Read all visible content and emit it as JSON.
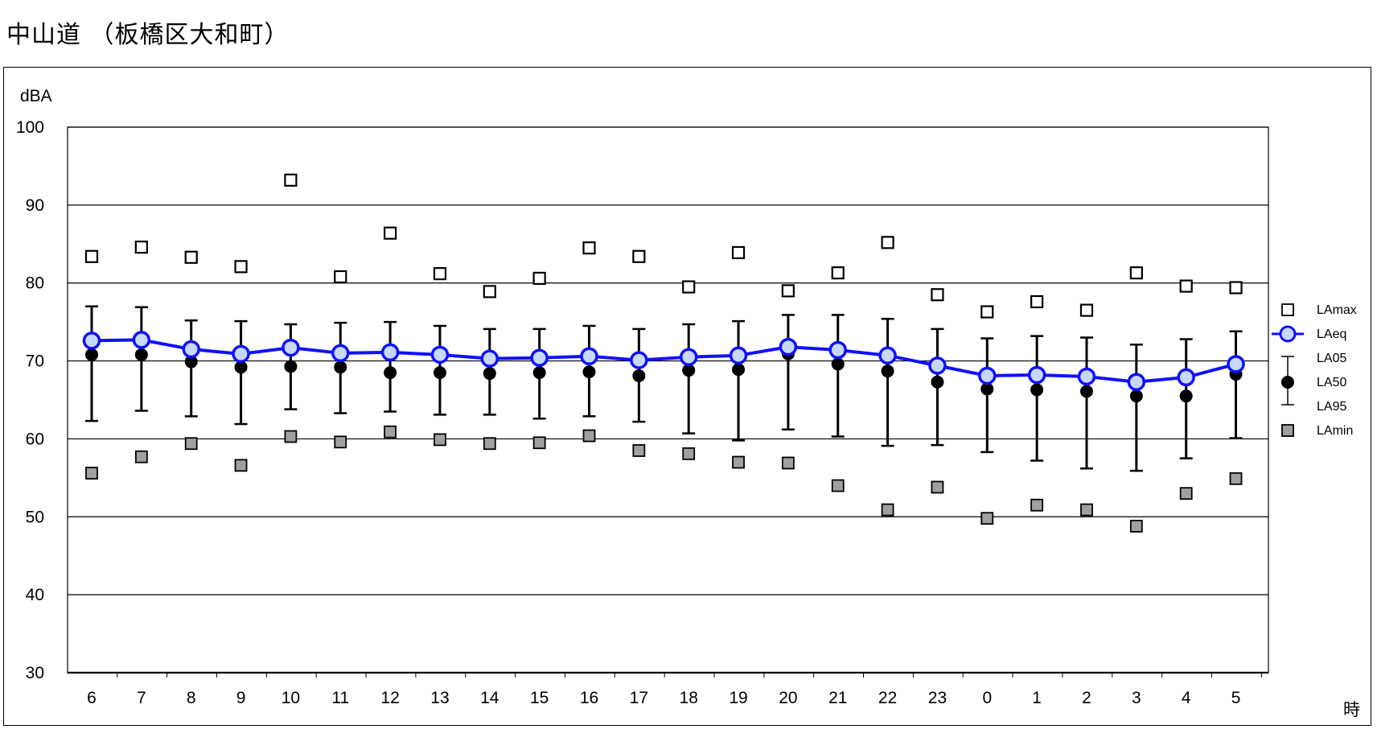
{
  "page": {
    "title": "中山道 （板橋区大和町）"
  },
  "chart_data": {
    "type": "scatter",
    "title": "中山道 （板橋区大和町）",
    "ylabel": "dBA",
    "xlabel": "時",
    "ylim": [
      30,
      100
    ],
    "yticks": [
      "30",
      "40",
      "50",
      "60",
      "70",
      "80",
      "90",
      "100"
    ],
    "grid": true,
    "legend_position": "right",
    "categories": [
      "6",
      "7",
      "8",
      "9",
      "10",
      "11",
      "12",
      "13",
      "14",
      "15",
      "16",
      "17",
      "18",
      "19",
      "20",
      "21",
      "22",
      "23",
      "0",
      "1",
      "2",
      "3",
      "4",
      "5"
    ],
    "series": [
      {
        "name": "LAmax",
        "marker": "hollow-square",
        "values": [
          83.4,
          84.6,
          83.3,
          82.1,
          93.2,
          80.8,
          86.4,
          81.2,
          78.9,
          80.6,
          84.5,
          83.4,
          79.5,
          83.9,
          79.0,
          81.3,
          85.2,
          78.5,
          76.3,
          77.6,
          76.5,
          81.3,
          79.6,
          79.4
        ]
      },
      {
        "name": "LAeq",
        "marker": "hollow-circle-line",
        "values": [
          72.6,
          72.7,
          71.5,
          70.9,
          71.7,
          71.0,
          71.1,
          70.8,
          70.3,
          70.4,
          70.6,
          70.1,
          70.5,
          70.7,
          71.8,
          71.4,
          70.7,
          69.4,
          68.1,
          68.2,
          68.0,
          67.3,
          67.9,
          69.6
        ]
      },
      {
        "name": "LA05",
        "marker": "errorbar-top",
        "values": [
          77.0,
          76.9,
          75.2,
          75.1,
          74.7,
          74.9,
          75.0,
          74.5,
          74.1,
          74.1,
          74.5,
          74.1,
          74.7,
          75.1,
          75.9,
          75.9,
          75.4,
          74.1,
          72.9,
          73.2,
          73.0,
          72.1,
          72.8,
          73.8
        ]
      },
      {
        "name": "LA50",
        "marker": "filled-circle",
        "values": [
          70.8,
          70.8,
          69.9,
          69.2,
          69.3,
          69.2,
          68.5,
          68.5,
          68.4,
          68.5,
          68.6,
          68.1,
          68.8,
          68.9,
          70.9,
          69.6,
          68.7,
          67.3,
          66.4,
          66.3,
          66.1,
          65.5,
          65.5,
          68.3
        ]
      },
      {
        "name": "LA95",
        "marker": "errorbar-bottom",
        "values": [
          62.3,
          63.6,
          62.9,
          61.9,
          63.8,
          63.3,
          63.5,
          63.1,
          63.1,
          62.6,
          62.9,
          62.2,
          60.7,
          59.8,
          61.2,
          60.3,
          59.1,
          59.2,
          58.3,
          57.2,
          56.2,
          55.9,
          57.5,
          60.1
        ]
      },
      {
        "name": "LAmin",
        "marker": "filled-gray-square",
        "values": [
          55.6,
          57.7,
          59.4,
          56.6,
          60.3,
          59.6,
          60.9,
          59.9,
          59.4,
          59.5,
          60.4,
          58.5,
          58.1,
          57.0,
          56.9,
          54.0,
          50.9,
          53.8,
          49.8,
          51.5,
          50.9,
          48.8,
          53.0,
          54.9
        ]
      }
    ],
    "colors": {
      "LAeq": "#1010ff",
      "LAeq_fill": "#c8d8f8",
      "LAmin": "#a0a0a0",
      "LA50": "#000000"
    }
  }
}
